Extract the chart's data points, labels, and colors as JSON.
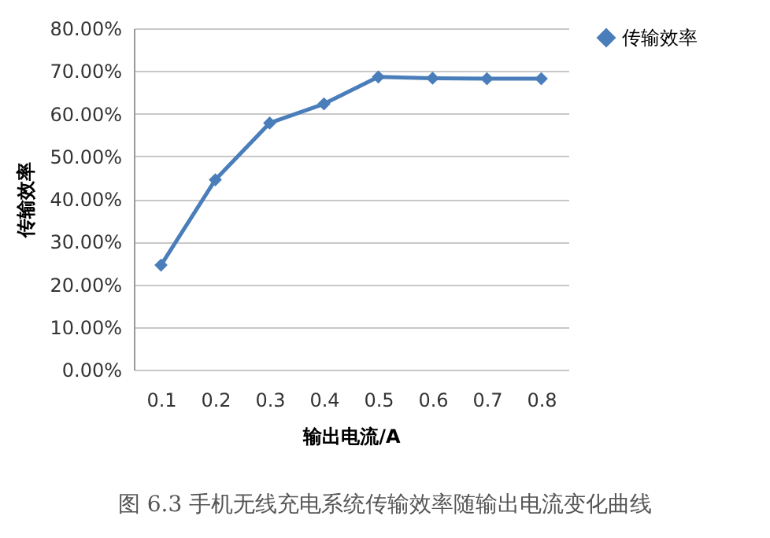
{
  "chart_data": {
    "type": "line",
    "xlabel": "输出电流/A",
    "ylabel": "传输效率",
    "categories": [
      "0.1",
      "0.2",
      "0.3",
      "0.4",
      "0.5",
      "0.6",
      "0.7",
      "0.8"
    ],
    "series": [
      {
        "name": "传输效率",
        "color": "#4a7ebb",
        "values": [
          24.5,
          44.5,
          57.8,
          62.3,
          68.6,
          68.3,
          68.2,
          68.2
        ]
      }
    ],
    "ylim": [
      0,
      80
    ],
    "yticks": [
      {
        "value": 0,
        "label": "0.00%"
      },
      {
        "value": 10,
        "label": "10.00%"
      },
      {
        "value": 20,
        "label": "20.00%"
      },
      {
        "value": 30,
        "label": "30.00%"
      },
      {
        "value": 40,
        "label": "40.00%"
      },
      {
        "value": 50,
        "label": "50.00%"
      },
      {
        "value": 60,
        "label": "60.00%"
      },
      {
        "value": 70,
        "label": "70.00%"
      },
      {
        "value": 80,
        "label": "80.00%"
      }
    ],
    "grid": "y",
    "legend": "right",
    "marker": "diamond",
    "line_style": "solid",
    "annotations": [
      "图 6.3 手机无线充电系统传输效率随输出电流变化曲线"
    ]
  }
}
